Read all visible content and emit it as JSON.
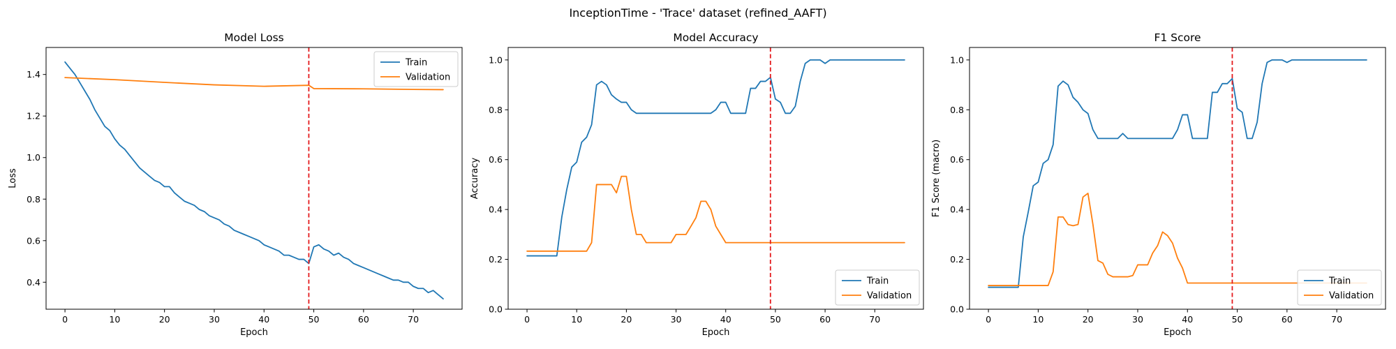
{
  "figure_title": "InceptionTime - 'Trace' dataset (refined_AAFT)",
  "chart_data": [
    {
      "type": "line",
      "title": "Model Loss",
      "xlabel": "Epoch",
      "ylabel": "Loss",
      "xlim": [
        -3.8,
        79.8
      ],
      "ylim": [
        0.27,
        1.53
      ],
      "xticks": [
        0,
        10,
        20,
        30,
        40,
        50,
        60,
        70
      ],
      "yticks": [
        0.4,
        0.6,
        0.8,
        1.0,
        1.2,
        1.4
      ],
      "ytick_decimals": 1,
      "vline": 49,
      "legend_position": "upper right",
      "series": [
        {
          "name": "Train",
          "color": "#1f77b4",
          "x": [
            0,
            1,
            2,
            3,
            4,
            5,
            6,
            7,
            8,
            9,
            10,
            11,
            12,
            13,
            14,
            15,
            16,
            17,
            18,
            19,
            20,
            21,
            22,
            23,
            24,
            25,
            26,
            27,
            28,
            29,
            30,
            31,
            32,
            33,
            34,
            35,
            36,
            37,
            38,
            39,
            40,
            41,
            42,
            43,
            44,
            45,
            46,
            47,
            48,
            49,
            50,
            51,
            52,
            53,
            54,
            55,
            56,
            57,
            58,
            59,
            60,
            61,
            62,
            63,
            64,
            65,
            66,
            67,
            68,
            69,
            70,
            71,
            72,
            73,
            74,
            75,
            76
          ],
          "values": [
            1.46,
            1.43,
            1.4,
            1.36,
            1.32,
            1.28,
            1.23,
            1.19,
            1.15,
            1.13,
            1.09,
            1.06,
            1.04,
            1.01,
            0.98,
            0.95,
            0.93,
            0.91,
            0.89,
            0.88,
            0.86,
            0.86,
            0.83,
            0.81,
            0.79,
            0.78,
            0.77,
            0.75,
            0.74,
            0.72,
            0.71,
            0.7,
            0.68,
            0.67,
            0.65,
            0.64,
            0.63,
            0.62,
            0.61,
            0.6,
            0.58,
            0.57,
            0.56,
            0.55,
            0.53,
            0.53,
            0.52,
            0.51,
            0.51,
            0.49,
            0.57,
            0.58,
            0.56,
            0.55,
            0.53,
            0.54,
            0.52,
            0.51,
            0.49,
            0.48,
            0.47,
            0.46,
            0.45,
            0.44,
            0.43,
            0.42,
            0.41,
            0.41,
            0.4,
            0.4,
            0.38,
            0.37,
            0.37,
            0.35,
            0.36,
            0.34,
            0.32
          ]
        },
        {
          "name": "Validation",
          "color": "#ff7f0e",
          "x": [
            0,
            10,
            20,
            30,
            40,
            49,
            50,
            60,
            70,
            76
          ],
          "values": [
            1.385,
            1.375,
            1.362,
            1.35,
            1.343,
            1.348,
            1.332,
            1.331,
            1.328,
            1.327
          ]
        }
      ]
    },
    {
      "type": "line",
      "title": "Model Accuracy",
      "xlabel": "Epoch",
      "ylabel": "Accuracy",
      "xlim": [
        -3.8,
        79.8
      ],
      "ylim": [
        0.0,
        1.05
      ],
      "xticks": [
        0,
        10,
        20,
        30,
        40,
        50,
        60,
        70
      ],
      "yticks": [
        0.0,
        0.2,
        0.4,
        0.6,
        0.8,
        1.0
      ],
      "ytick_decimals": 1,
      "vline": 49,
      "legend_position": "lower right",
      "series": [
        {
          "name": "Train",
          "color": "#1f77b4",
          "x": [
            0,
            1,
            2,
            3,
            4,
            5,
            6,
            7,
            8,
            9,
            10,
            11,
            12,
            13,
            14,
            15,
            16,
            17,
            18,
            19,
            20,
            21,
            22,
            23,
            24,
            25,
            26,
            27,
            28,
            29,
            30,
            31,
            32,
            33,
            34,
            35,
            36,
            37,
            38,
            39,
            40,
            41,
            42,
            43,
            44,
            45,
            46,
            47,
            48,
            49,
            50,
            51,
            52,
            53,
            54,
            55,
            56,
            57,
            58,
            59,
            60,
            61,
            62,
            63,
            64,
            65,
            66,
            67,
            68,
            69,
            70,
            71,
            72,
            73,
            74,
            75,
            76
          ],
          "values": [
            0.214,
            0.214,
            0.214,
            0.214,
            0.214,
            0.214,
            0.214,
            0.37,
            0.48,
            0.57,
            0.59,
            0.67,
            0.69,
            0.74,
            0.9,
            0.914,
            0.9,
            0.86,
            0.843,
            0.83,
            0.83,
            0.8,
            0.786,
            0.786,
            0.786,
            0.786,
            0.786,
            0.786,
            0.786,
            0.786,
            0.786,
            0.786,
            0.786,
            0.786,
            0.786,
            0.786,
            0.786,
            0.786,
            0.8,
            0.83,
            0.83,
            0.786,
            0.786,
            0.786,
            0.786,
            0.886,
            0.886,
            0.914,
            0.914,
            0.93,
            0.843,
            0.83,
            0.786,
            0.786,
            0.814,
            0.914,
            0.986,
            1.0,
            1.0,
            1.0,
            0.986,
            1.0,
            1.0,
            1.0,
            1.0,
            1.0,
            1.0,
            1.0,
            1.0,
            1.0,
            1.0,
            1.0,
            1.0,
            1.0,
            1.0,
            1.0,
            1.0
          ]
        },
        {
          "name": "Validation",
          "color": "#ff7f0e",
          "x": [
            0,
            1,
            2,
            3,
            4,
            5,
            6,
            7,
            8,
            9,
            10,
            11,
            12,
            13,
            14,
            15,
            16,
            17,
            18,
            19,
            20,
            21,
            22,
            23,
            24,
            25,
            26,
            27,
            28,
            29,
            30,
            31,
            32,
            33,
            34,
            35,
            36,
            37,
            38,
            39,
            40,
            41,
            42,
            43,
            44,
            45,
            46,
            47,
            48,
            49,
            50,
            51,
            52,
            53,
            54,
            55,
            56,
            57,
            58,
            59,
            60,
            61,
            62,
            63,
            64,
            65,
            66,
            67,
            68,
            69,
            70,
            71,
            72,
            73,
            74,
            75,
            76
          ],
          "values": [
            0.233,
            0.233,
            0.233,
            0.233,
            0.233,
            0.233,
            0.233,
            0.233,
            0.233,
            0.233,
            0.233,
            0.233,
            0.233,
            0.267,
            0.5,
            0.5,
            0.5,
            0.5,
            0.467,
            0.533,
            0.533,
            0.4,
            0.3,
            0.3,
            0.267,
            0.267,
            0.267,
            0.267,
            0.267,
            0.267,
            0.3,
            0.3,
            0.3,
            0.333,
            0.367,
            0.433,
            0.433,
            0.4,
            0.333,
            0.3,
            0.267,
            0.267,
            0.267,
            0.267,
            0.267,
            0.267,
            0.267,
            0.267,
            0.267,
            0.267,
            0.267,
            0.267,
            0.267,
            0.267,
            0.267,
            0.267,
            0.267,
            0.267,
            0.267,
            0.267,
            0.267,
            0.267,
            0.267,
            0.267,
            0.267,
            0.267,
            0.267,
            0.267,
            0.267,
            0.267,
            0.267,
            0.267,
            0.267,
            0.267,
            0.267,
            0.267,
            0.267
          ]
        }
      ]
    },
    {
      "type": "line",
      "title": "F1 Score",
      "xlabel": "Epoch",
      "ylabel": "F1 Score (macro)",
      "xlim": [
        -3.8,
        79.8
      ],
      "ylim": [
        0.0,
        1.05
      ],
      "xticks": [
        0,
        10,
        20,
        30,
        40,
        50,
        60,
        70
      ],
      "yticks": [
        0.0,
        0.2,
        0.4,
        0.6,
        0.8,
        1.0
      ],
      "ytick_decimals": 1,
      "vline": 49,
      "legend_position": "lower right",
      "series": [
        {
          "name": "Train",
          "color": "#1f77b4",
          "x": [
            0,
            1,
            2,
            3,
            4,
            5,
            6,
            7,
            8,
            9,
            10,
            11,
            12,
            13,
            14,
            15,
            16,
            17,
            18,
            19,
            20,
            21,
            22,
            23,
            24,
            25,
            26,
            27,
            28,
            29,
            30,
            31,
            32,
            33,
            34,
            35,
            36,
            37,
            38,
            39,
            40,
            41,
            42,
            43,
            44,
            45,
            46,
            47,
            48,
            49,
            50,
            51,
            52,
            53,
            54,
            55,
            56,
            57,
            58,
            59,
            60,
            61,
            62,
            63,
            64,
            65,
            66,
            67,
            68,
            69,
            70,
            71,
            72,
            73,
            74,
            75,
            76
          ],
          "values": [
            0.088,
            0.088,
            0.088,
            0.088,
            0.088,
            0.088,
            0.088,
            0.29,
            0.39,
            0.495,
            0.51,
            0.585,
            0.6,
            0.66,
            0.895,
            0.915,
            0.9,
            0.85,
            0.83,
            0.8,
            0.785,
            0.72,
            0.685,
            0.685,
            0.685,
            0.685,
            0.685,
            0.705,
            0.685,
            0.685,
            0.685,
            0.685,
            0.685,
            0.685,
            0.685,
            0.685,
            0.685,
            0.685,
            0.72,
            0.78,
            0.78,
            0.685,
            0.685,
            0.685,
            0.685,
            0.87,
            0.87,
            0.905,
            0.905,
            0.925,
            0.805,
            0.79,
            0.685,
            0.685,
            0.75,
            0.905,
            0.99,
            1.0,
            1.0,
            1.0,
            0.99,
            1.0,
            1.0,
            1.0,
            1.0,
            1.0,
            1.0,
            1.0,
            1.0,
            1.0,
            1.0,
            1.0,
            1.0,
            1.0,
            1.0,
            1.0,
            1.0
          ]
        },
        {
          "name": "Validation",
          "color": "#ff7f0e",
          "x": [
            0,
            1,
            2,
            3,
            4,
            5,
            6,
            7,
            8,
            9,
            10,
            11,
            12,
            13,
            14,
            15,
            16,
            17,
            18,
            19,
            20,
            21,
            22,
            23,
            24,
            25,
            26,
            27,
            28,
            29,
            30,
            31,
            32,
            33,
            34,
            35,
            36,
            37,
            38,
            39,
            40,
            41,
            42,
            43,
            44,
            45,
            46,
            47,
            48,
            49,
            50,
            51,
            52,
            53,
            54,
            55,
            56,
            57,
            58,
            59,
            60,
            61,
            62,
            63,
            64,
            65,
            66,
            67,
            68,
            69,
            70,
            71,
            72,
            73,
            74,
            75,
            76
          ],
          "values": [
            0.095,
            0.095,
            0.095,
            0.095,
            0.095,
            0.095,
            0.095,
            0.095,
            0.095,
            0.095,
            0.095,
            0.095,
            0.095,
            0.15,
            0.37,
            0.37,
            0.34,
            0.335,
            0.34,
            0.45,
            0.465,
            0.34,
            0.195,
            0.185,
            0.14,
            0.13,
            0.13,
            0.13,
            0.13,
            0.135,
            0.178,
            0.178,
            0.178,
            0.225,
            0.255,
            0.31,
            0.295,
            0.265,
            0.205,
            0.165,
            0.105,
            0.105,
            0.105,
            0.105,
            0.105,
            0.105,
            0.105,
            0.105,
            0.105,
            0.105,
            0.105,
            0.105,
            0.105,
            0.105,
            0.105,
            0.105,
            0.105,
            0.105,
            0.105,
            0.105,
            0.105,
            0.105,
            0.105,
            0.105,
            0.105,
            0.105,
            0.105,
            0.105,
            0.105,
            0.105,
            0.105,
            0.105,
            0.105,
            0.105,
            0.105,
            0.105,
            0.105
          ]
        }
      ]
    }
  ]
}
